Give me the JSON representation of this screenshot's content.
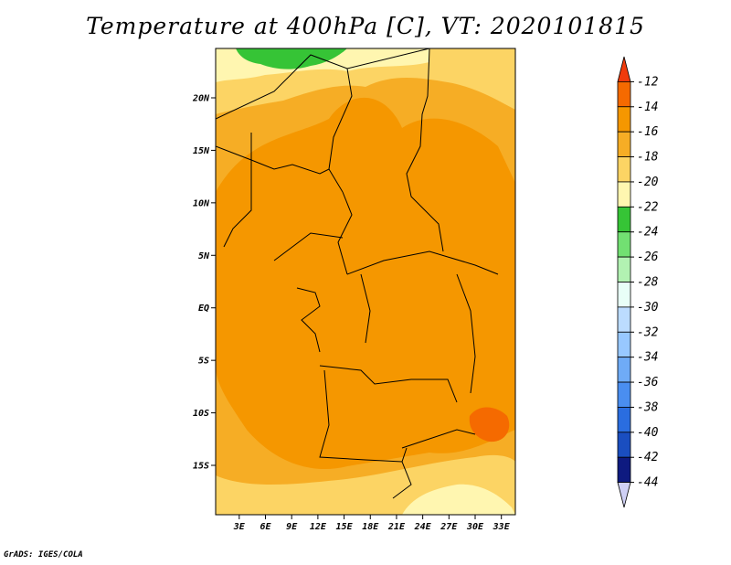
{
  "title": "Temperature at 400hPa [C], VT: 2020101815",
  "footer": "GrADS: IGES/COLA",
  "chart_data": {
    "type": "heatmap",
    "title": "Temperature at 400hPa [C], VT: 2020101815",
    "variable": "Temperature",
    "level": "400hPa",
    "units": "C",
    "valid_time": "2020101815",
    "x_ticks": [
      "3E",
      "6E",
      "9E",
      "12E",
      "15E",
      "18E",
      "21E",
      "24E",
      "27E",
      "30E",
      "33E"
    ],
    "x_tick_values": [
      3,
      6,
      9,
      12,
      15,
      18,
      21,
      24,
      27,
      30,
      33
    ],
    "y_ticks": [
      "20N",
      "15N",
      "10N",
      "5N",
      "EQ",
      "5S",
      "10S",
      "15S"
    ],
    "y_tick_values": [
      20,
      15,
      10,
      5,
      0,
      -5,
      -10,
      -15
    ],
    "xlim": [
      0.3,
      34.6
    ],
    "ylim": [
      -19.7,
      24.7
    ],
    "colorbar": {
      "labels": [
        "-12",
        "-14",
        "-16",
        "-18",
        "-20",
        "-22",
        "-24",
        "-26",
        "-28",
        "-30",
        "-32",
        "-34",
        "-36",
        "-38",
        "-40",
        "-42",
        "-44"
      ],
      "colors": [
        "#f03b0c",
        "#f56a00",
        "#f59700",
        "#f6ad25",
        "#fcd464",
        "#fff6b0",
        "#36c436",
        "#72e072",
        "#b2f2b2",
        "#e8fff7",
        "#bcdcff",
        "#98c8ff",
        "#6fabf6",
        "#4a8ef0",
        "#2a6de0",
        "#1a4ec0",
        "#0e1a80",
        "#cfd0f5"
      ]
    },
    "regions": [
      {
        "name": "sahara-north",
        "value": -20,
        "color": "#fcd464"
      },
      {
        "name": "libya-green",
        "value": -23,
        "color": "#36c436"
      },
      {
        "name": "central-band",
        "value": -15,
        "color": "#f59700"
      },
      {
        "name": "southern-belt",
        "value": -17,
        "color": "#f6ad25"
      },
      {
        "name": "tanzania-warm",
        "value": -13,
        "color": "#f56a00"
      },
      {
        "name": "southeast-pale",
        "value": -21,
        "color": "#fff6b0"
      }
    ],
    "grid": false,
    "legend": "right"
  }
}
